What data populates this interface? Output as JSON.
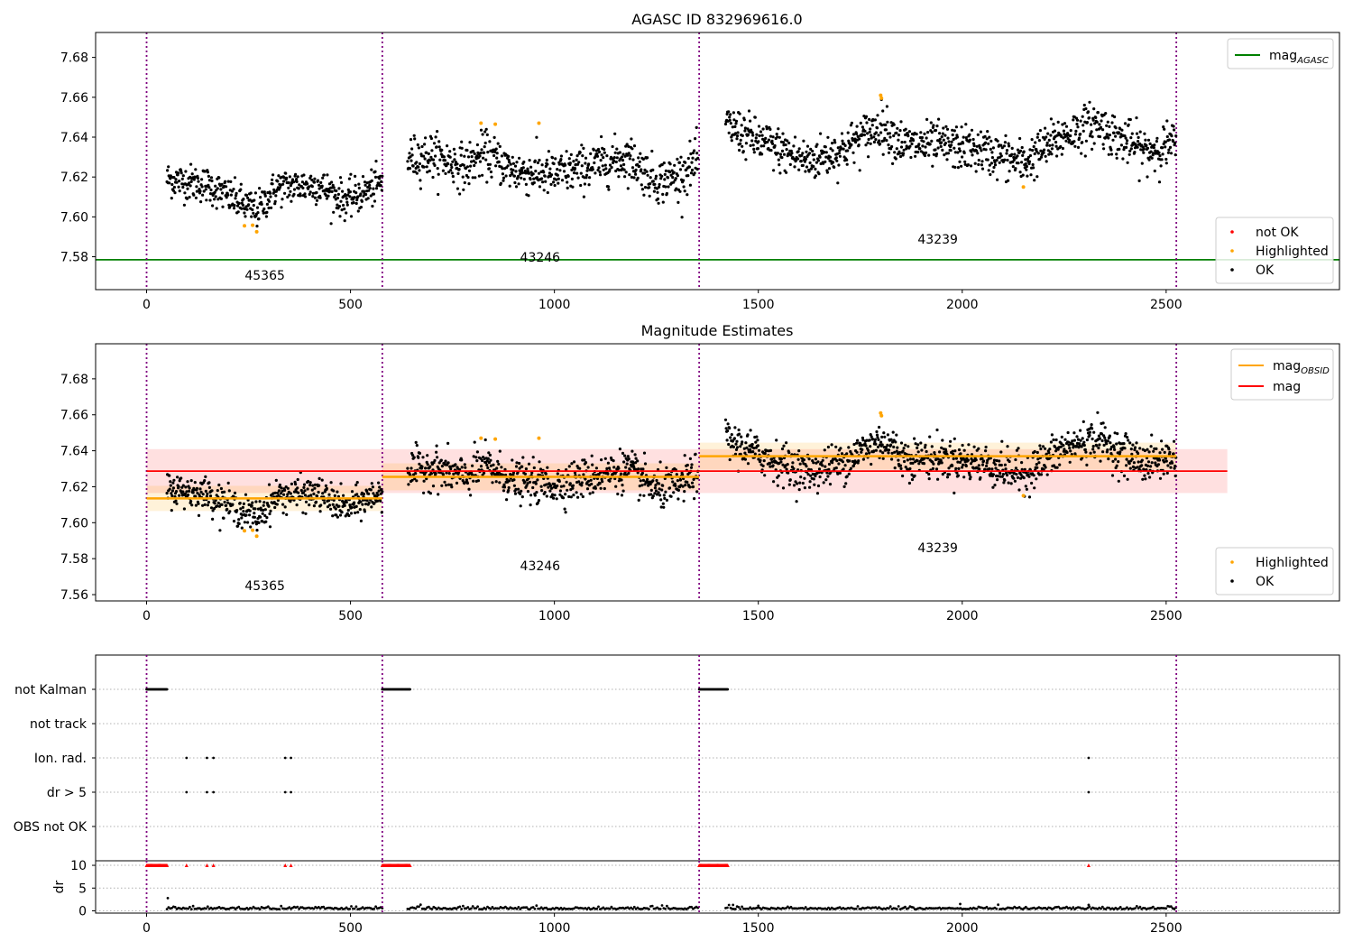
{
  "chart_data": [
    {
      "type": "scatter",
      "title": "AGASC ID 832969616.0",
      "xlim": [
        -125,
        2925
      ],
      "ylim": [
        7.5635,
        7.6925
      ],
      "xticks": [
        0,
        500,
        1000,
        1500,
        2000,
        2500
      ],
      "yticks": [
        7.58,
        7.6,
        7.62,
        7.64,
        7.66,
        7.68
      ],
      "obs_boundaries": [
        0,
        578,
        1355,
        2525
      ],
      "legend_lines": [
        {
          "label": "mag",
          "sub": "AGASC",
          "color": "#008000"
        }
      ],
      "legend_points": [
        {
          "label": "not OK",
          "color": "#ff0000"
        },
        {
          "label": "Highlighted",
          "color": "#ffa500"
        },
        {
          "label": "OK",
          "color": "#000000"
        }
      ],
      "mag_agasc": 7.5785,
      "obsids": [
        {
          "label": "45365",
          "x": 290,
          "y": 7.5685
        },
        {
          "label": "43246",
          "x": 965,
          "y": 7.5775
        },
        {
          "label": "43239",
          "x": 1940,
          "y": 7.5865
        }
      ],
      "segments": [
        {
          "x0": 50,
          "x1": 578,
          "trend": [
            [
              50,
              7.619
            ],
            [
              150,
              7.616
            ],
            [
              230,
              7.607
            ],
            [
              270,
              7.603
            ],
            [
              320,
              7.615
            ],
            [
              420,
              7.616
            ],
            [
              490,
              7.608
            ],
            [
              578,
              7.617
            ]
          ],
          "noise": 0.0045
        },
        {
          "x0": 640,
          "x1": 1352,
          "trend": [
            [
              640,
              7.629
            ],
            [
              700,
              7.631
            ],
            [
              780,
              7.625
            ],
            [
              830,
              7.632
            ],
            [
              900,
              7.623
            ],
            [
              1000,
              7.621
            ],
            [
              1100,
              7.626
            ],
            [
              1180,
              7.63
            ],
            [
              1250,
              7.618
            ],
            [
              1300,
              7.62
            ],
            [
              1352,
              7.628
            ]
          ],
          "noise": 0.0055
        },
        {
          "x0": 1420,
          "x1": 2525,
          "trend": [
            [
              1420,
              7.646
            ],
            [
              1500,
              7.638
            ],
            [
              1570,
              7.632
            ],
            [
              1620,
              7.628
            ],
            [
              1700,
              7.633
            ],
            [
              1800,
              7.646
            ],
            [
              1860,
              7.636
            ],
            [
              1950,
              7.636
            ],
            [
              2050,
              7.633
            ],
            [
              2150,
              7.627
            ],
            [
              2250,
              7.641
            ],
            [
              2330,
              7.647
            ],
            [
              2380,
              7.64
            ],
            [
              2450,
              7.633
            ],
            [
              2525,
              7.637
            ]
          ],
          "noise": 0.0055
        }
      ],
      "highlighted": [
        [
          240,
          7.5955
        ],
        [
          260,
          7.5958
        ],
        [
          270,
          7.5925
        ],
        [
          820,
          7.647
        ],
        [
          855,
          7.6465
        ],
        [
          962,
          7.647
        ],
        [
          1800,
          7.661
        ],
        [
          1802,
          7.6595
        ],
        [
          2150,
          7.615
        ]
      ]
    },
    {
      "type": "scatter",
      "title": "Magnitude Estimates",
      "xlim": [
        -125,
        2925
      ],
      "ylim": [
        7.5565,
        7.6995
      ],
      "xticks": [
        0,
        500,
        1000,
        1500,
        2000,
        2500
      ],
      "yticks": [
        7.56,
        7.58,
        7.6,
        7.62,
        7.64,
        7.66,
        7.68
      ],
      "obs_boundaries": [
        0,
        578,
        1355,
        2525
      ],
      "legend_lines": [
        {
          "label": "mag",
          "sub": "OBSID",
          "color": "#ffa500"
        },
        {
          "label": "mag",
          "sub": "",
          "color": "#ff0000"
        }
      ],
      "legend_points": [
        {
          "label": "Highlighted",
          "color": "#ffa500"
        },
        {
          "label": "OK",
          "color": "#000000"
        }
      ],
      "mag": {
        "value": 7.6287,
        "x0": 0,
        "x1": 2650,
        "band": [
          7.6165,
          7.6409
        ]
      },
      "mag_obsid": [
        {
          "x0": 0,
          "x1": 578,
          "value": 7.6135,
          "band": [
            7.6065,
            7.6205
          ]
        },
        {
          "x0": 578,
          "x1": 1355,
          "value": 7.6255,
          "band": [
            7.618,
            7.633
          ]
        },
        {
          "x0": 1355,
          "x1": 2525,
          "value": 7.637,
          "band": [
            7.6295,
            7.6445
          ]
        }
      ],
      "obsids": [
        {
          "label": "45365",
          "x": 290,
          "y": 7.5625
        },
        {
          "label": "43246",
          "x": 965,
          "y": 7.5735
        },
        {
          "label": "43239",
          "x": 1940,
          "y": 7.5835
        }
      ]
    },
    {
      "type": "scatter",
      "xlim": [
        -125,
        2925
      ],
      "xticks": [
        0,
        500,
        1000,
        1500,
        2000,
        2500
      ],
      "flag_rows": [
        "not Kalman",
        "not track",
        "Ion. rad.",
        "dr > 5",
        "OBS not OK"
      ],
      "obs_boundaries": [
        0,
        578,
        1355,
        2525
      ],
      "flag_points": [
        {
          "row": "not Kalman",
          "x": [
            0,
            50
          ],
          "step": 2
        },
        {
          "row": "not Kalman",
          "x": [
            578,
            646
          ],
          "step": 2
        },
        {
          "row": "not Kalman",
          "x": [
            1355,
            1425
          ],
          "step": 2
        },
        {
          "row": "Ion. rad.",
          "x": [
            98,
            148,
            164,
            340,
            354,
            2310
          ]
        },
        {
          "row": "dr > 5",
          "x": [
            98,
            148,
            164,
            340,
            354,
            2310
          ]
        }
      ]
    },
    {
      "type": "scatter",
      "ylabel": "dr",
      "xlim": [
        -125,
        2925
      ],
      "ylim": [
        -0.5,
        11
      ],
      "yticks": [
        0,
        5,
        10
      ],
      "dr_clipped": 10,
      "dr_segments": [
        [
          50,
          578
        ],
        [
          640,
          1352
        ],
        [
          1420,
          2525
        ]
      ],
      "dr_spikes": [
        [
          52,
          2.8
        ],
        [
          1438,
          1.3
        ],
        [
          1500,
          1.1
        ],
        [
          1995,
          1.5
        ],
        [
          2310,
          1.3
        ]
      ],
      "clipped_points": [
        {
          "x": [
            0,
            50
          ],
          "step": 2
        },
        {
          "x": [
            578,
            646
          ],
          "step": 2
        },
        {
          "x": [
            1355,
            1425
          ],
          "step": 2
        },
        {
          "x": [
            98,
            148,
            164,
            340,
            354,
            2310
          ]
        }
      ],
      "xticks": [
        0,
        500,
        1000,
        1500,
        2000,
        2500
      ]
    }
  ]
}
